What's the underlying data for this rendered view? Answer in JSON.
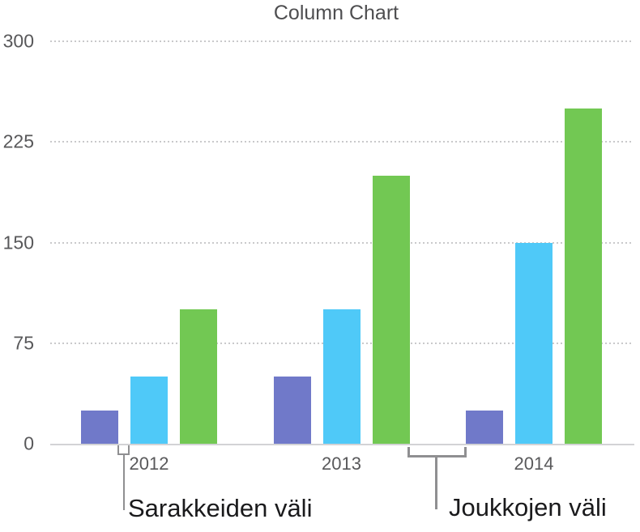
{
  "chart_data": {
    "type": "bar",
    "title": "Column Chart",
    "categories": [
      "2012",
      "2013",
      "2014"
    ],
    "series": [
      {
        "color": "#7079c9",
        "values": [
          25,
          50,
          25
        ]
      },
      {
        "color": "#4fc9f8",
        "values": [
          50,
          100,
          150
        ]
      },
      {
        "color": "#72c853",
        "values": [
          100,
          200,
          250
        ]
      }
    ],
    "xlabel": "",
    "ylabel": "",
    "yticks": [
      0,
      75,
      150,
      225,
      300
    ],
    "ylim": [
      0,
      300
    ],
    "grid": "horizontal dotted",
    "legend": "none"
  },
  "annotations": [
    {
      "label": "Sarakkeiden väli",
      "target": "gap between columns within a group"
    },
    {
      "label": "Joukkojen väli",
      "target": "gap between category groups"
    }
  ],
  "colors": {
    "series_purple": "#7079c9",
    "series_cyan": "#4fc9f8",
    "series_green": "#72c853",
    "title_text": "#4e4e50",
    "axis_text": "#58585a",
    "annotation_text": "#1a1a1c",
    "bracket": "#8f8f91",
    "axis_line": "#d3d3d5",
    "gridline": "#c9c9cb"
  }
}
